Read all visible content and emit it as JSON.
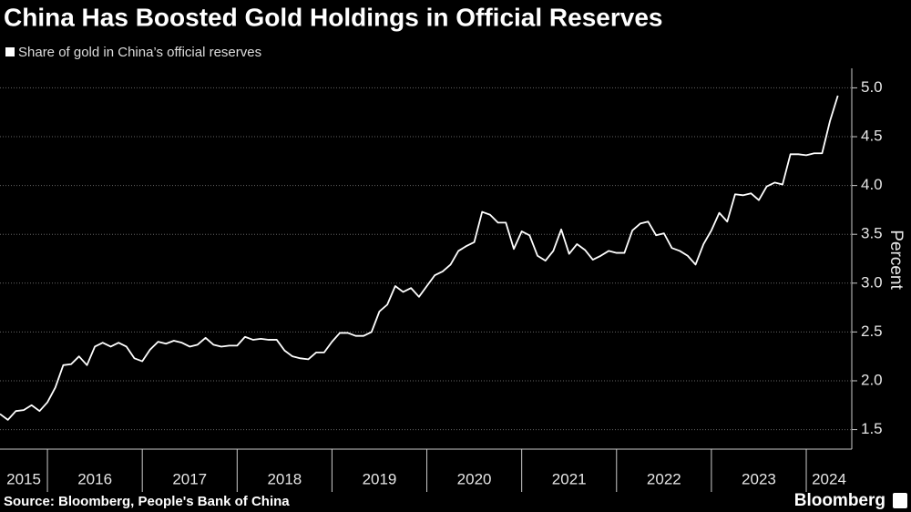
{
  "chart_data": {
    "type": "line",
    "title": "China Has Boosted Gold Holdings in Official Reserves",
    "y_label": "Percent",
    "source": "Source: Bloomberg, People's Bank of China",
    "brand": "Bloomberg",
    "x": [
      2015.5,
      2015.583,
      2015.667,
      2015.75,
      2015.833,
      2015.917,
      2016,
      2016.083,
      2016.167,
      2016.25,
      2016.333,
      2016.417,
      2016.5,
      2016.583,
      2016.667,
      2016.75,
      2016.833,
      2016.917,
      2017,
      2017.083,
      2017.167,
      2017.25,
      2017.333,
      2017.417,
      2017.5,
      2017.583,
      2017.667,
      2017.75,
      2017.833,
      2017.917,
      2018,
      2018.083,
      2018.167,
      2018.25,
      2018.333,
      2018.417,
      2018.5,
      2018.583,
      2018.667,
      2018.75,
      2018.833,
      2018.917,
      2019,
      2019.083,
      2019.167,
      2019.25,
      2019.333,
      2019.417,
      2019.5,
      2019.583,
      2019.667,
      2019.75,
      2019.833,
      2019.917,
      2020,
      2020.083,
      2020.167,
      2020.25,
      2020.333,
      2020.417,
      2020.5,
      2020.583,
      2020.667,
      2020.75,
      2020.833,
      2020.917,
      2021,
      2021.083,
      2021.167,
      2021.25,
      2021.333,
      2021.417,
      2021.5,
      2021.583,
      2021.667,
      2021.75,
      2021.833,
      2021.917,
      2022,
      2022.083,
      2022.167,
      2022.25,
      2022.333,
      2022.417,
      2022.5,
      2022.583,
      2022.667,
      2022.75,
      2022.833,
      2022.917,
      2023,
      2023.083,
      2023.167,
      2023.25,
      2023.333,
      2023.417,
      2023.5,
      2023.583,
      2023.667,
      2023.75,
      2023.833,
      2023.917,
      2024,
      2024.083,
      2024.167,
      2024.25,
      2024.333
    ],
    "series": [
      {
        "name": "Share of gold in China’s official reserves",
        "color": "#ffffff",
        "values": [
          1.66,
          1.6,
          1.69,
          1.7,
          1.75,
          1.69,
          1.78,
          1.93,
          2.16,
          2.17,
          2.25,
          2.16,
          2.35,
          2.39,
          2.35,
          2.39,
          2.35,
          2.23,
          2.2,
          2.32,
          2.4,
          2.38,
          2.41,
          2.39,
          2.35,
          2.37,
          2.44,
          2.37,
          2.35,
          2.36,
          2.36,
          2.45,
          2.42,
          2.43,
          2.42,
          2.42,
          2.31,
          2.25,
          2.23,
          2.22,
          2.29,
          2.29,
          2.4,
          2.49,
          2.49,
          2.46,
          2.46,
          2.5,
          2.71,
          2.78,
          2.97,
          2.91,
          2.95,
          2.86,
          2.97,
          3.08,
          3.12,
          3.19,
          3.33,
          3.38,
          3.42,
          3.73,
          3.7,
          3.62,
          3.62,
          3.35,
          3.53,
          3.49,
          3.28,
          3.23,
          3.33,
          3.55,
          3.3,
          3.4,
          3.34,
          3.24,
          3.28,
          3.33,
          3.31,
          3.31,
          3.54,
          3.61,
          3.63,
          3.49,
          3.51,
          3.36,
          3.33,
          3.28,
          3.19,
          3.4,
          3.54,
          3.72,
          3.63,
          3.91,
          3.9,
          3.92,
          3.85,
          3.99,
          4.03,
          4.01,
          4.32,
          4.32,
          4.31,
          4.33,
          4.33,
          4.66,
          4.92
        ]
      }
    ],
    "xlim": [
      2015.5,
      2024.48
    ],
    "xticks": [
      2015,
      2016,
      2017,
      2018,
      2019,
      2020,
      2021,
      2022,
      2023,
      2024
    ],
    "ylim": [
      1.3,
      5.2
    ],
    "yticks": [
      1.5,
      {
        "value": 2,
        "label": "2.0"
      },
      2.5,
      {
        "value": 3,
        "label": "3.0"
      },
      3.5,
      {
        "value": 4,
        "label": "4.0"
      },
      4.5,
      {
        "value": 5,
        "label": "5.0"
      }
    ],
    "grid": true
  }
}
